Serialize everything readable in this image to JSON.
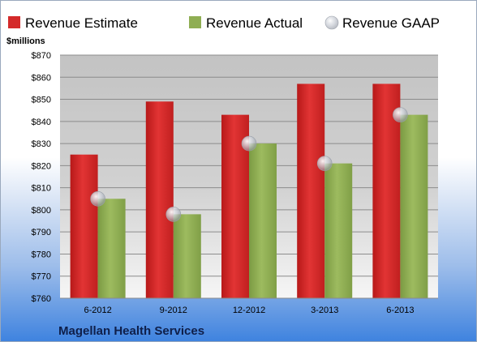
{
  "chart_data": {
    "type": "bar",
    "categories": [
      "6-2012",
      "9-2012",
      "12-2012",
      "3-2013",
      "6-2013"
    ],
    "series": [
      {
        "name": "Revenue Estimate",
        "values": [
          825,
          849,
          843,
          857,
          857
        ],
        "color": "#d42a2a"
      },
      {
        "name": "Revenue Actual",
        "values": [
          805,
          798,
          830,
          821,
          843
        ],
        "color": "#8fae53"
      }
    ],
    "gaap": {
      "name": "Revenue GAAP",
      "values": [
        805,
        798,
        830,
        821,
        843
      ],
      "color": "#b7bcc7"
    },
    "ylabel": "$millions",
    "ylim": [
      760,
      870
    ],
    "yticks": [
      "$760",
      "$770",
      "$780",
      "$790",
      "$800",
      "$810",
      "$820",
      "$830",
      "$840",
      "$850",
      "$860",
      "$870"
    ],
    "grid": true,
    "legend": "top",
    "footer": "Magellan Health Services"
  }
}
